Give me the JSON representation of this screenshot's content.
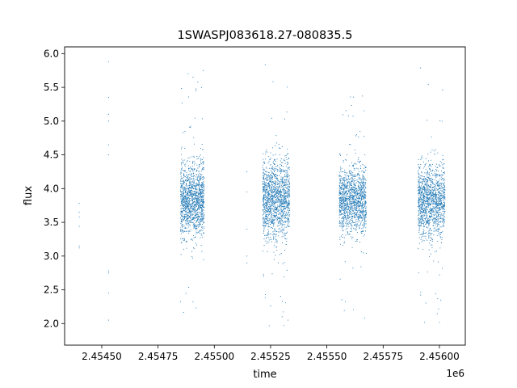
{
  "chart_data": {
    "type": "scatter",
    "title": "1SWASPJ083618.27-080835.5",
    "xlabel": "time",
    "ylabel": "flux",
    "x_offset_label": "1e6",
    "xlim": [
      2454335,
      2456115
    ],
    "ylim": [
      1.68,
      6.1
    ],
    "x_ticks": [
      2454500,
      2454750,
      2455000,
      2455250,
      2455500,
      2455750,
      2456000
    ],
    "x_tick_labels": [
      "2.45450",
      "2.45475",
      "2.45500",
      "2.45525",
      "2.45550",
      "2.45575",
      "2.45600"
    ],
    "y_ticks": [
      2.0,
      2.5,
      3.0,
      3.5,
      4.0,
      4.5,
      5.0,
      5.5,
      6.0
    ],
    "y_tick_labels": [
      "2.0",
      "2.5",
      "3.0",
      "3.5",
      "4.0",
      "4.5",
      "5.0",
      "5.5",
      "6.0"
    ],
    "grid": false,
    "legend": false,
    "marker_color": "#1f77b4",
    "series": [
      {
        "name": "",
        "x": [
          2454400,
          2454400,
          2454400,
          2454400,
          2454400,
          2454400,
          2454530,
          2454530,
          2454530,
          2454530,
          2454530,
          2454530,
          2454530,
          2454530,
          2454530,
          2454530,
          2454853,
          2454860,
          2454866,
          2454873,
          2454880,
          2454887,
          2454894,
          2454901,
          2454908,
          2454915,
          2454922,
          2454929,
          2454936,
          2454943,
          2454950,
          2455145,
          2455145,
          2455145,
          2455145,
          2455145,
          2455220,
          2455228,
          2455236,
          2455244,
          2455252,
          2455260,
          2455268,
          2455276,
          2455284,
          2455292,
          2455300,
          2455308,
          2455316,
          2455324,
          2455330,
          2455560,
          2455568,
          2455576,
          2455584,
          2455592,
          2455600,
          2455608,
          2455616,
          2455624,
          2455632,
          2455640,
          2455648,
          2455656,
          2455664,
          2455670,
          2455912,
          2455920,
          2455928,
          2455936,
          2455944,
          2455952,
          2455960,
          2455968,
          2455976,
          2455984,
          2455992,
          2456000,
          2456008,
          2456016,
          2456022
        ],
        "y": [
          3.78,
          3.65,
          3.58,
          3.44,
          3.15,
          3.12,
          5.88,
          5.35,
          5.1,
          5.0,
          4.65,
          4.5,
          2.78,
          2.75,
          2.45,
          2.05,
          3.8,
          3.9,
          3.7,
          4.0,
          3.85,
          3.75,
          3.95,
          3.82,
          3.68,
          3.9,
          3.78,
          4.05,
          3.72,
          3.88,
          3.8,
          4.25,
          3.95,
          3.4,
          3.0,
          2.9,
          3.85,
          3.95,
          3.75,
          4.02,
          3.88,
          3.7,
          3.92,
          3.8,
          3.98,
          3.75,
          3.9,
          3.82,
          3.7,
          3.88,
          3.8,
          3.85,
          3.95,
          3.72,
          4.0,
          3.8,
          3.68,
          3.9,
          3.78,
          3.95,
          3.7,
          3.85,
          3.9,
          3.75,
          3.88,
          3.8,
          3.8,
          3.95,
          3.7,
          4.0,
          3.85,
          3.75,
          3.92,
          3.82,
          3.7,
          3.9,
          3.78,
          4.0,
          3.72,
          3.88,
          3.8
        ]
      }
    ],
    "clusters": [
      {
        "x_range": [
          2454850,
          2454955
        ],
        "center": 3.83,
        "spread": 0.55,
        "tail_low": 2.05,
        "tail_high": 5.75,
        "count": 1300
      },
      {
        "x_range": [
          2455215,
          2455335
        ],
        "center": 3.85,
        "spread": 0.6,
        "tail_low": 1.9,
        "tail_high": 5.85,
        "count": 1400
      },
      {
        "x_range": [
          2455555,
          2455675
        ],
        "center": 3.82,
        "spread": 0.5,
        "tail_low": 1.95,
        "tail_high": 5.45,
        "count": 1300
      },
      {
        "x_range": [
          2455905,
          2456025
        ],
        "center": 3.82,
        "spread": 0.55,
        "tail_low": 1.95,
        "tail_high": 5.8,
        "count": 1300
      }
    ]
  }
}
